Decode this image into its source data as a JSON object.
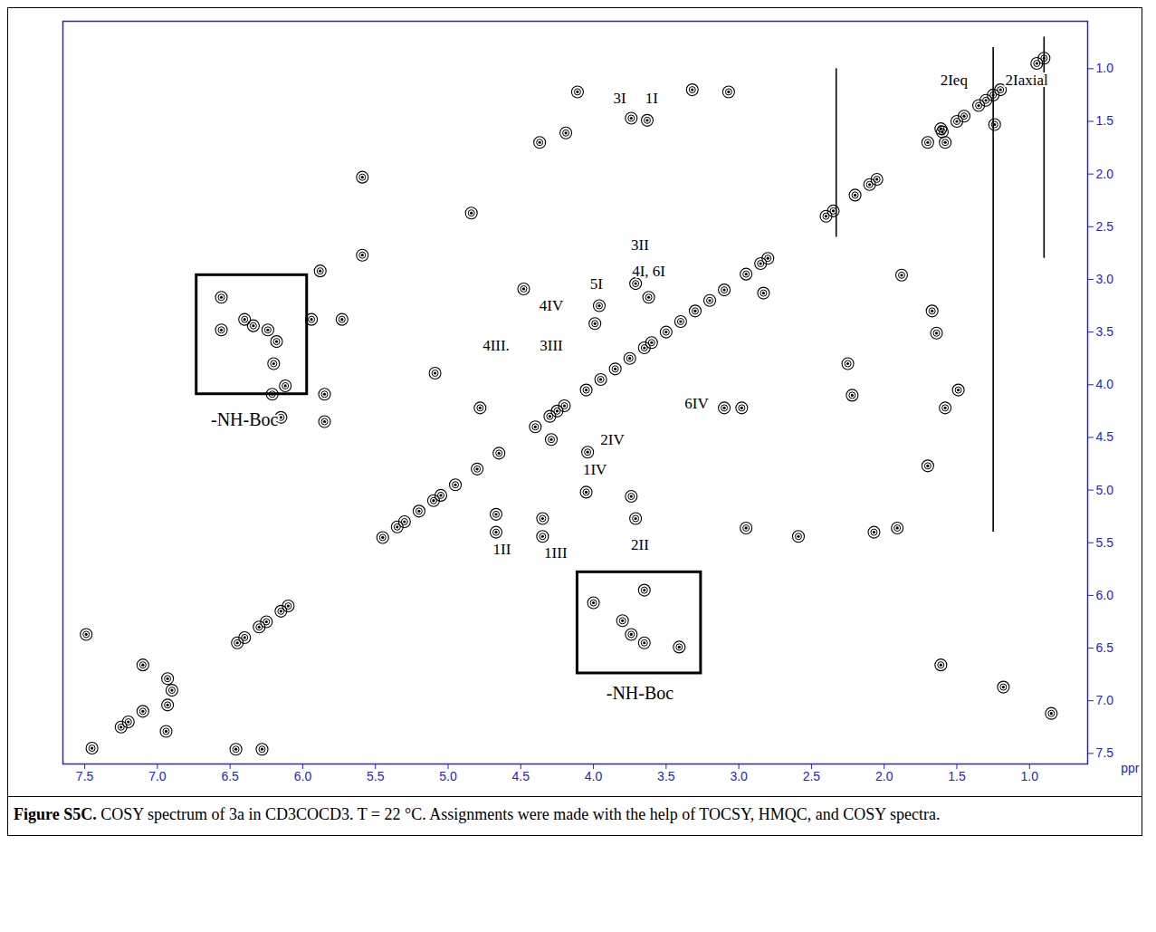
{
  "chart_data": {
    "type": "scatter",
    "x_label": "ppr",
    "color": "#000000",
    "marker": "contour",
    "x": [
      4.11,
      3.32,
      3.07,
      3.74,
      3.63,
      4.37,
      4.19,
      5.59,
      5.59,
      1.61,
      1.58,
      1.24,
      1.88,
      1.67,
      1.64,
      1.49,
      1.58,
      1.7,
      1.91,
      2.07,
      2.95,
      2.25,
      2.22,
      1.18,
      0.85,
      6.56,
      6.56,
      6.4,
      6.34,
      6.24,
      6.18,
      6.2,
      4.0,
      3.8,
      3.74,
      3.65,
      3.41,
      3.65,
      5.94,
      5.73,
      6.21,
      6.12,
      6.15,
      5.85,
      5.85,
      5.09,
      4.78,
      4.67,
      4.67,
      4.35,
      4.35,
      4.05,
      3.74,
      3.71,
      4.04,
      4.29,
      4.48,
      3.96,
      3.99,
      3.71,
      3.62,
      3.1,
      2.98,
      5.88,
      4.84,
      2.83,
      7.49,
      7.1,
      6.93,
      6.93,
      6.94,
      6.46,
      6.28,
      1.61,
      2.59,
      7.45,
      7.25,
      7.2,
      7.1,
      6.9,
      6.45,
      6.4,
      6.3,
      6.25,
      6.15,
      6.1,
      5.45,
      5.35,
      5.3,
      5.2,
      5.1,
      5.05,
      4.95,
      4.8,
      4.65,
      4.4,
      4.3,
      4.25,
      4.2,
      4.05,
      3.95,
      3.85,
      3.75,
      3.65,
      3.6,
      3.5,
      3.4,
      3.3,
      3.2,
      3.1,
      2.95,
      2.85,
      2.8,
      2.4,
      2.35,
      2.2,
      2.1,
      2.05,
      1.7,
      1.6,
      1.5,
      1.45,
      1.35,
      1.3,
      1.25,
      1.2,
      0.95,
      0.9
    ],
    "y": [
      1.22,
      1.2,
      1.22,
      1.47,
      1.49,
      1.7,
      1.61,
      2.03,
      2.77,
      1.57,
      1.7,
      1.53,
      2.96,
      3.3,
      3.51,
      4.05,
      4.22,
      4.77,
      5.36,
      5.4,
      5.36,
      3.8,
      4.1,
      6.87,
      7.12,
      3.17,
      3.48,
      3.38,
      3.44,
      3.48,
      3.59,
      3.8,
      6.07,
      6.24,
      6.37,
      6.45,
      6.49,
      5.95,
      3.38,
      3.38,
      4.09,
      4.01,
      4.31,
      4.35,
      4.09,
      3.89,
      4.22,
      5.23,
      5.4,
      5.27,
      5.44,
      5.02,
      5.06,
      5.27,
      4.64,
      4.52,
      3.09,
      3.25,
      3.42,
      3.04,
      3.17,
      4.22,
      4.22,
      2.92,
      2.37,
      3.13,
      6.37,
      6.66,
      6.79,
      7.04,
      7.29,
      7.46,
      7.46,
      6.66,
      5.44,
      7.45,
      7.25,
      7.2,
      7.1,
      6.9,
      6.45,
      6.4,
      6.3,
      6.25,
      6.15,
      6.1,
      5.45,
      5.35,
      5.3,
      5.2,
      5.1,
      5.05,
      4.95,
      4.8,
      4.65,
      4.4,
      4.3,
      4.25,
      4.2,
      4.05,
      3.95,
      3.85,
      3.75,
      3.65,
      3.6,
      3.5,
      3.4,
      3.3,
      3.2,
      3.1,
      2.95,
      2.85,
      2.8,
      2.4,
      2.35,
      2.2,
      2.1,
      2.05,
      1.7,
      1.6,
      1.5,
      1.45,
      1.35,
      1.3,
      1.25,
      1.2,
      0.95,
      0.9
    ],
    "ridges": [
      {
        "x": 2.33,
        "y1": 1.0,
        "y2": 2.6
      },
      {
        "x": 1.25,
        "y1": 0.8,
        "y2": 5.4
      },
      {
        "x": 0.9,
        "y1": 0.7,
        "y2": 2.8
      }
    ],
    "xlim": [
      7.65,
      0.6
    ],
    "ylim": [
      0.55,
      7.6
    ],
    "xticks": [
      7.5,
      {
        "value": 7,
        "label": "7.0"
      },
      6.5,
      {
        "value": 6,
        "label": "6.0"
      },
      5.5,
      {
        "value": 5,
        "label": "5.0"
      },
      4.5,
      {
        "value": 4,
        "label": "4.0"
      },
      3.5,
      {
        "value": 3,
        "label": "3.0"
      },
      2.5,
      {
        "value": 2,
        "label": "2.0"
      },
      1.5,
      {
        "value": 1,
        "label": "1.0"
      }
    ],
    "yticks": [
      {
        "value": 1,
        "label": "1.0"
      },
      1.5,
      {
        "value": 2,
        "label": "2.0"
      },
      2.5,
      {
        "value": 3,
        "label": "3.0"
      },
      3.5,
      {
        "value": 4,
        "label": "4.0"
      },
      4.5,
      {
        "value": 5,
        "label": "5.0"
      },
      5.5,
      {
        "value": 6,
        "label": "6.0"
      },
      6.5,
      {
        "value": 7,
        "label": "7.0"
      },
      7.5
    ],
    "annotations": [
      {
        "text": "3I",
        "x": 3.82,
        "y": 1.28
      },
      {
        "text": "1I",
        "x": 3.6,
        "y": 1.28
      },
      {
        "text": "2Ieq",
        "x": 1.52,
        "y": 1.11
      },
      {
        "text": "2Iaxial",
        "x": 1.02,
        "y": 1.11
      },
      {
        "text": "3II",
        "x": 3.68,
        "y": 2.67
      },
      {
        "text": "4I, 6I",
        "x": 3.62,
        "y": 2.92
      },
      {
        "text": "5I",
        "x": 3.98,
        "y": 3.04
      },
      {
        "text": "4IV",
        "x": 4.29,
        "y": 3.25
      },
      {
        "text": "4III.",
        "x": 4.67,
        "y": 3.63
      },
      {
        "text": "3III",
        "x": 4.29,
        "y": 3.63
      },
      {
        "text": "6IV",
        "x": 3.29,
        "y": 4.18
      },
      {
        "text": "2IV",
        "x": 3.87,
        "y": 4.52
      },
      {
        "text": "1IV",
        "x": 3.99,
        "y": 4.81
      },
      {
        "text": "2II",
        "x": 3.68,
        "y": 5.52
      },
      {
        "text": "1II",
        "x": 4.63,
        "y": 5.56
      },
      {
        "text": "1III",
        "x": 4.26,
        "y": 5.6
      }
    ],
    "boxes": [
      {
        "label": "-NH-Boc",
        "x1": 6.73,
        "x2": 5.97,
        "y1": 2.96,
        "y2": 4.09,
        "label_x": 6.4,
        "label_y": 4.33
      },
      {
        "label": "-NH-Boc",
        "x1": 4.11,
        "x2": 3.26,
        "y1": 5.78,
        "y2": 6.74,
        "label_x": 3.68,
        "label_y": 6.93
      }
    ],
    "caption_label": "Figure S5C.",
    "caption": "COSY spectrum of 3a in CD3COCD3. T = 22 °C. Assignments were made with the help of TOCSY, HMQC, and COSY spectra."
  }
}
